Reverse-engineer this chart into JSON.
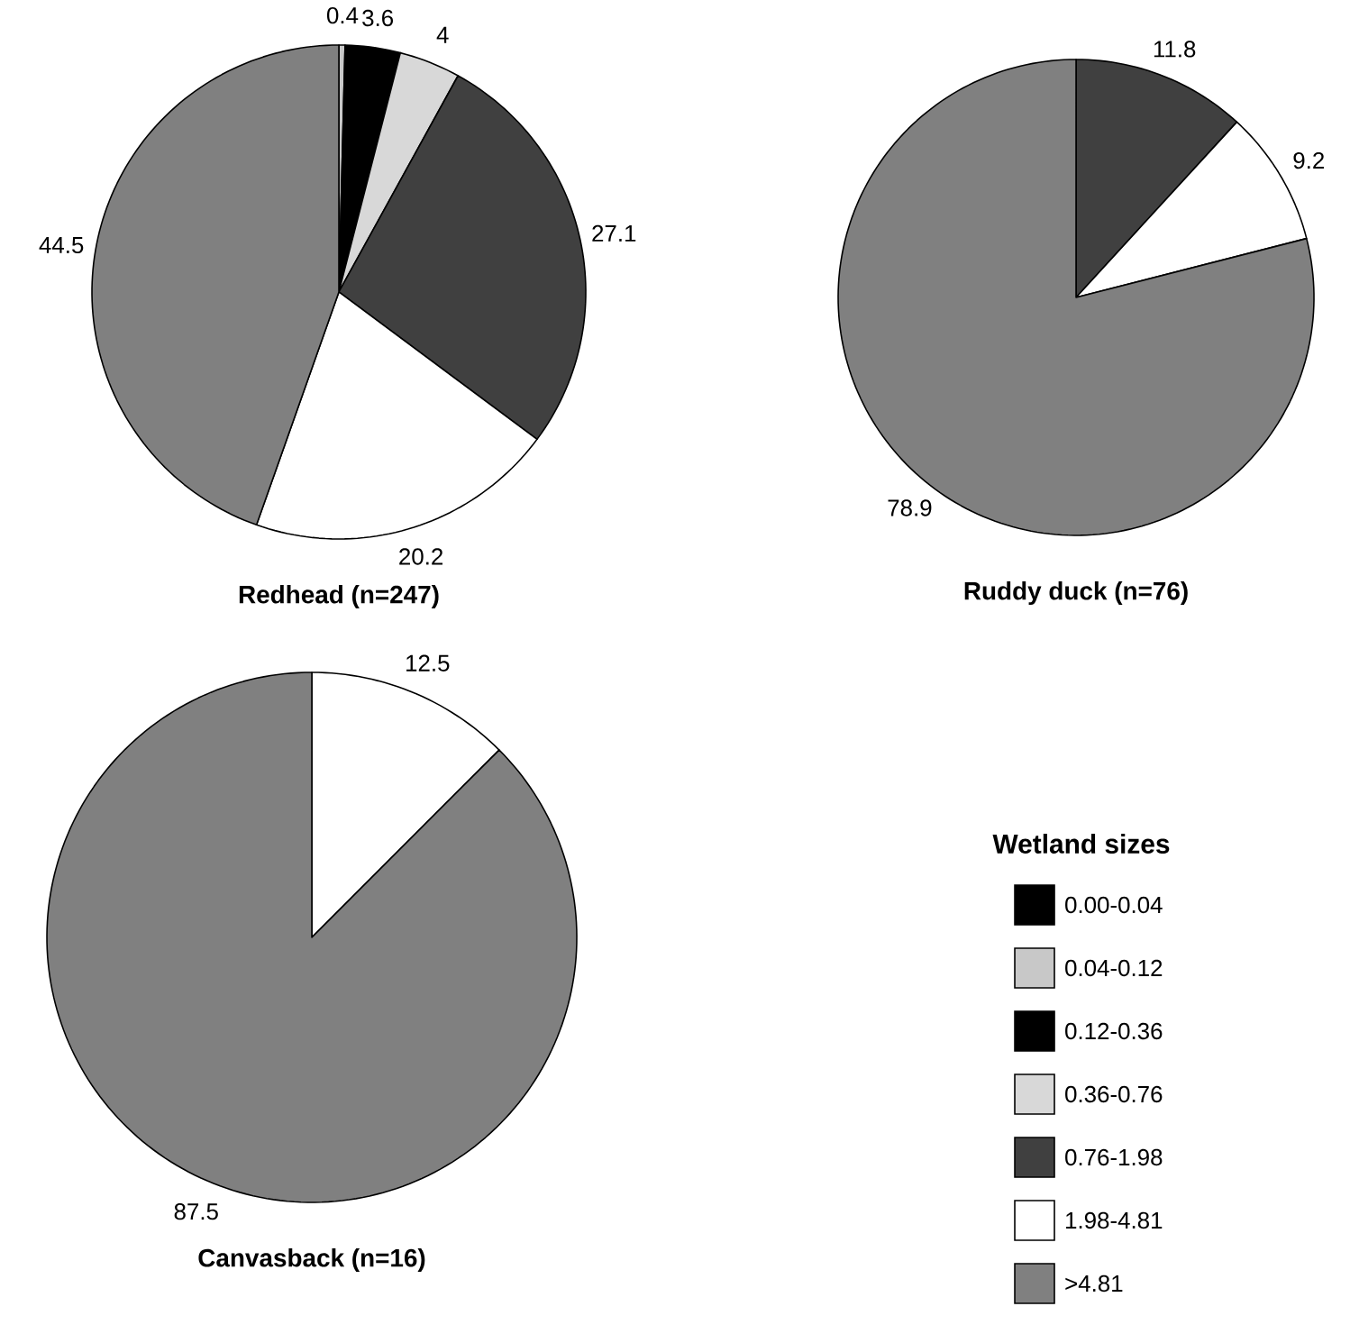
{
  "chart_data": [
    {
      "type": "pie",
      "title": "Redhead (n=247)",
      "categories": [
        null,
        null,
        null,
        null,
        null,
        null,
        null
      ],
      "values": [
        null,
        0.4,
        3.6,
        4,
        27.1,
        20.2,
        44.5
      ],
      "colors": [
        "#000000",
        "#c8c8c8",
        "#000000",
        "#d8d8d8",
        "#404040",
        "#ffffff",
        "#808080"
      ],
      "data_labels": true
    },
    {
      "type": "pie",
      "title": "Ruddy duck (n=76)",
      "categories": [
        null,
        null,
        null,
        null,
        null,
        null,
        null
      ],
      "values": [
        null,
        null,
        null,
        null,
        11.8,
        9.2,
        78.9
      ],
      "colors": [
        "#000000",
        "#c8c8c8",
        "#000000",
        "#d8d8d8",
        "#404040",
        "#ffffff",
        "#808080"
      ],
      "data_labels": true
    },
    {
      "type": "pie",
      "title": "Canvasback (n=16)",
      "categories": [
        "0.00-0.04",
        "0.04-0.12",
        "0.12-0.36",
        "0.36-0.76",
        "0.76-1.98",
        "1.98-4.81",
        ">4.81"
      ],
      "values": [
        null,
        null,
        null,
        null,
        null,
        12.5,
        87.5
      ],
      "colors": [
        "#000000",
        "#c8c8c8",
        "#000000",
        "#d8d8d8",
        "#404040",
        "#ffffff",
        "#808080"
      ],
      "legend": "right",
      "legend_title": "Wetland sizes",
      "data_labels": true
    }
  ]
}
